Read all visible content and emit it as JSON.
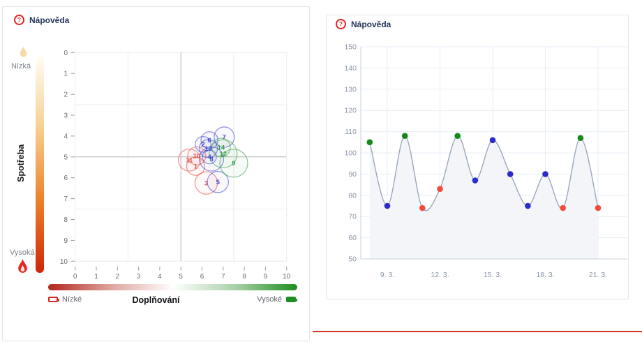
{
  "left_panel": {
    "help": {
      "label": "Nápověda",
      "icon_glyph": "?"
    },
    "consumption_legend": {
      "title": "Spotřeba",
      "low_label": "Nízká",
      "high_label": "Vysoká"
    },
    "replenishment_legend": {
      "title": "Doplňování",
      "low_label": "Nízké",
      "high_label": "Vysoké"
    }
  },
  "right_panel": {
    "help": {
      "label": "Nápověda",
      "icon_glyph": "?"
    }
  },
  "colors": {
    "help_red": "#e02424",
    "help_text": "#23355c",
    "bubble": {
      "red": "#e25349",
      "blue": "#4347cf",
      "green": "#3d9e4d"
    },
    "dot": {
      "red": "#f24a3d",
      "blue": "#2b2ccc",
      "green": "#15891d"
    },
    "line": "#9aa7bc",
    "area_fill": "#f3f5f9",
    "grid_left": "#ececec",
    "ref_line": "#b3b3b3",
    "tick_mark_left": "#9b9b9b",
    "tick_text_left": "#6d6d6d",
    "grid_right": "#e7edf5",
    "spine_right": "#c7d1df",
    "tick_text_right": "#8a96a8",
    "gradient_vertical": [
      "#fffef8",
      "#f8cf90",
      "#ee8127",
      "#d02508"
    ],
    "gradient_horizontal": [
      "#b3261c",
      "#dda49c",
      "#ffffff",
      "#a9d2a9",
      "#1e8c1e"
    ],
    "flame_top": "#f6d9a4",
    "flame_bottom": "#e8251a",
    "legend_battery_red": "#cf2a1f",
    "legend_battery_green": "#1e8c1e"
  },
  "chart_data": [
    {
      "type": "scatter",
      "subtype": "bubble",
      "xlabel": "Doplňování",
      "ylabel": "Spotřeba",
      "xlim": [
        0,
        10
      ],
      "ylim": [
        0,
        10
      ],
      "y_axis_inverted": true,
      "x_ticks": [
        0,
        1,
        2,
        3,
        4,
        5,
        6,
        7,
        8,
        9,
        10
      ],
      "y_ticks": [
        0,
        1,
        2,
        3,
        4,
        5,
        6,
        7,
        8,
        9,
        10
      ],
      "grid_lines": [
        0,
        2.5,
        5,
        7.5,
        10
      ],
      "reference_lines": {
        "x": 5,
        "y": 5
      },
      "x_legend": {
        "low": "Nízké",
        "high": "Vysoké"
      },
      "y_legend": {
        "low": "Nízká",
        "high": "Vysoká"
      },
      "bubbles": [
        {
          "id": 1,
          "x": 5.7,
          "y": 5.45,
          "r": 0.43,
          "color": "red"
        },
        {
          "id": 2,
          "x": 6.05,
          "y": 4.4,
          "r": 0.37,
          "color": "blue"
        },
        {
          "id": 3,
          "x": 6.2,
          "y": 6.25,
          "r": 0.53,
          "color": "red"
        },
        {
          "id": 4,
          "x": 6.35,
          "y": 5.0,
          "r": 0.33,
          "color": "blue"
        },
        {
          "id": 5,
          "x": 6.75,
          "y": 6.2,
          "r": 0.5,
          "color": "blue"
        },
        {
          "id": 6,
          "x": 6.35,
          "y": 4.2,
          "r": 0.4,
          "color": "blue"
        },
        {
          "id": 7,
          "x": 7.05,
          "y": 4.05,
          "r": 0.48,
          "color": "blue"
        },
        {
          "id": 8,
          "x": 6.45,
          "y": 5.1,
          "r": 0.57,
          "color": "blue"
        },
        {
          "id": 9,
          "x": 7.5,
          "y": 5.3,
          "r": 0.66,
          "color": "green"
        },
        {
          "id": 10,
          "x": 5.75,
          "y": 4.95,
          "r": 0.43,
          "color": "red"
        },
        {
          "id": 11,
          "x": 5.4,
          "y": 5.15,
          "r": 0.52,
          "color": "red"
        },
        {
          "id": 12,
          "x": 7.0,
          "y": 4.85,
          "r": 0.66,
          "color": "green"
        },
        {
          "id": 13,
          "x": 6.3,
          "y": 4.6,
          "r": 0.43,
          "color": "blue"
        },
        {
          "id": 14,
          "x": 6.9,
          "y": 4.55,
          "r": 0.44,
          "color": "green"
        }
      ]
    },
    {
      "type": "line",
      "smooth": true,
      "area_fill": true,
      "ylim": [
        50,
        150
      ],
      "y_ticks": [
        50,
        60,
        70,
        80,
        90,
        100,
        110,
        120,
        130,
        140,
        150
      ],
      "x_tick_labels": [
        "9. 3.",
        "12. 3.",
        "15. 3.",
        "18. 3.",
        "21. 3."
      ],
      "x_tick_days": [
        9,
        12,
        15,
        18,
        21
      ],
      "points": [
        {
          "day": 8,
          "label": "8. 3.",
          "value": 105,
          "color": "green"
        },
        {
          "day": 9,
          "label": "9. 3.",
          "value": 75,
          "color": "blue"
        },
        {
          "day": 10,
          "label": "10. 3.",
          "value": 108,
          "color": "green"
        },
        {
          "day": 11,
          "label": "11. 3.",
          "value": 74,
          "color": "red"
        },
        {
          "day": 12,
          "label": "12. 3.",
          "value": 83,
          "color": "red"
        },
        {
          "day": 13,
          "label": "13. 3.",
          "value": 108,
          "color": "green"
        },
        {
          "day": 14,
          "label": "14. 3.",
          "value": 87,
          "color": "blue"
        },
        {
          "day": 15,
          "label": "15. 3.",
          "value": 106,
          "color": "blue"
        },
        {
          "day": 16,
          "label": "16. 3.",
          "value": 90,
          "color": "blue"
        },
        {
          "day": 17,
          "label": "17. 3.",
          "value": 75,
          "color": "blue"
        },
        {
          "day": 18,
          "label": "18. 3.",
          "value": 90,
          "color": "blue"
        },
        {
          "day": 19,
          "label": "19. 3.",
          "value": 74,
          "color": "red"
        },
        {
          "day": 20,
          "label": "20. 3.",
          "value": 107,
          "color": "green"
        },
        {
          "day": 21,
          "label": "21. 3.",
          "value": 74,
          "color": "red"
        }
      ]
    }
  ]
}
